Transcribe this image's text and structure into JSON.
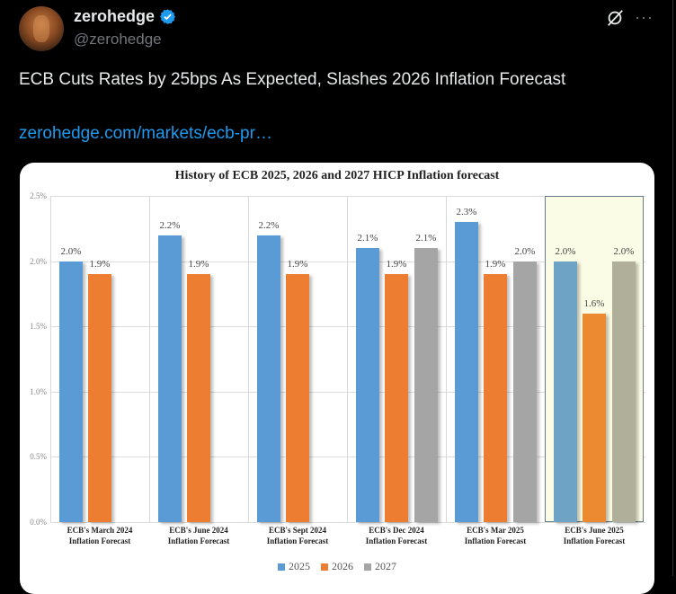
{
  "tweet": {
    "display_name": "zerohedge",
    "handle": "@zerohedge",
    "verified": true,
    "verified_icon": "verified-badge-icon",
    "grok_icon": "grok-icon",
    "more_label": "···",
    "text": "ECB Cuts Rates by 25bps As Expected, Slashes 2026 Inflation Forecast",
    "link_text": "zerohedge.com/markets/ecb-pr…",
    "colors": {
      "background": "#000000",
      "text": "#e7e9ea",
      "muted": "#71767b",
      "link": "#1d9bf0",
      "verified": "#1d9bf0"
    }
  },
  "chart_data": {
    "type": "bar",
    "title": "History of ECB 2025, 2026 and 2027 HICP Inflation forecast",
    "xlabel": "",
    "ylabel": "",
    "ylim": [
      0,
      2.5
    ],
    "yticks": [
      "0.0%",
      "0.5%",
      "1.0%",
      "1.5%",
      "2.0%",
      "2.5%"
    ],
    "grid": true,
    "legend_position": "bottom",
    "categories": [
      "ECB's March 2024 Inflation Forecast",
      "ECB's June 2024 Inflation Forecast",
      "ECB's Sept 2024 Inflation Forecast",
      "ECB's Dec 2024 Inflation Forecast",
      "ECB's Mar 2025 Inflation Forecast",
      "ECB's June 2025 Inflation Forecast"
    ],
    "category_lines": [
      [
        "ECB's March 2024",
        "Inflation Forecast"
      ],
      [
        "ECB's June 2024",
        "Inflation Forecast"
      ],
      [
        "ECB's Sept 2024",
        "Inflation Forecast"
      ],
      [
        "ECB's Dec 2024",
        "Inflation Forecast"
      ],
      [
        "ECB's Mar 2025",
        "Inflation Forecast"
      ],
      [
        "ECB's June 2025",
        "Inflation Forecast"
      ]
    ],
    "series": [
      {
        "name": "2025",
        "color": "#5b9bd5",
        "values": [
          2.0,
          2.2,
          2.2,
          2.1,
          2.3,
          2.0
        ],
        "labels": [
          "2.0%",
          "2.2%",
          "2.2%",
          "2.1%",
          "2.3%",
          "2.0%"
        ]
      },
      {
        "name": "2026",
        "color": "#ed7d31",
        "values": [
          1.9,
          1.9,
          1.9,
          1.9,
          1.9,
          1.6
        ],
        "labels": [
          "1.9%",
          "1.9%",
          "1.9%",
          "1.9%",
          "1.9%",
          "1.6%"
        ]
      },
      {
        "name": "2027",
        "color": "#a5a5a5",
        "values": [
          null,
          null,
          null,
          2.1,
          2.0,
          2.0
        ],
        "labels": [
          null,
          null,
          null,
          "2.1%",
          "2.0%",
          "2.0%"
        ]
      }
    ],
    "highlighted_category_index": 5,
    "highlight_color": "#fbfce5"
  }
}
